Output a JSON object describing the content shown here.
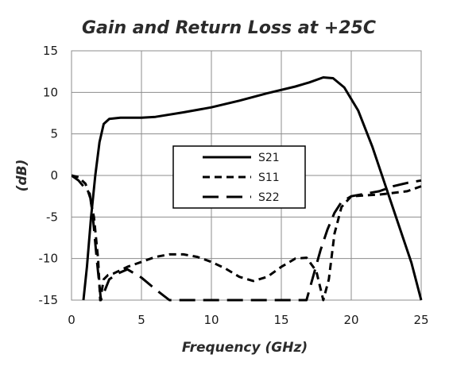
{
  "chart_data": {
    "type": "line",
    "title": "Gain and Return Loss at +25C",
    "xlabel": "Frequency (GHz)",
    "ylabel": "(dB)",
    "xlim": [
      0,
      25
    ],
    "ylim": [
      -15,
      15
    ],
    "xticks": [
      0,
      5,
      10,
      15,
      20,
      25
    ],
    "yticks": [
      15,
      10,
      5,
      0,
      -5,
      -10,
      -15
    ],
    "grid": true,
    "legend_position": "center",
    "series": [
      {
        "name": "S21",
        "line_style": "solid",
        "color": "#000000",
        "points": [
          [
            0.85,
            -15
          ],
          [
            1.1,
            -11
          ],
          [
            1.4,
            -5
          ],
          [
            1.7,
            0
          ],
          [
            2.0,
            4
          ],
          [
            2.3,
            6.2
          ],
          [
            2.7,
            6.8
          ],
          [
            3.5,
            6.95
          ],
          [
            5,
            6.95
          ],
          [
            6,
            7.05
          ],
          [
            8,
            7.6
          ],
          [
            10,
            8.2
          ],
          [
            12,
            9.0
          ],
          [
            14,
            9.9
          ],
          [
            16,
            10.7
          ],
          [
            17,
            11.2
          ],
          [
            18,
            11.8
          ],
          [
            18.7,
            11.7
          ],
          [
            19.5,
            10.6
          ],
          [
            20.5,
            7.8
          ],
          [
            21.5,
            3.5
          ],
          [
            22.5,
            -1.5
          ],
          [
            23.5,
            -6.5
          ],
          [
            24.3,
            -10.5
          ],
          [
            25,
            -15
          ]
        ]
      },
      {
        "name": "S11",
        "line_style": "short-dash",
        "color": "#000000",
        "points": [
          [
            0,
            0
          ],
          [
            0.5,
            -0.2
          ],
          [
            1.0,
            -1.0
          ],
          [
            1.3,
            -2.5
          ],
          [
            1.6,
            -5
          ],
          [
            1.9,
            -10
          ],
          [
            2.05,
            -15
          ],
          [
            2.3,
            -12.5
          ],
          [
            2.6,
            -12
          ],
          [
            3,
            -11.8
          ],
          [
            4,
            -11
          ],
          [
            5,
            -10.4
          ],
          [
            6,
            -9.8
          ],
          [
            7,
            -9.5
          ],
          [
            8,
            -9.5
          ],
          [
            9,
            -9.8
          ],
          [
            10,
            -10.4
          ],
          [
            11,
            -11.2
          ],
          [
            12,
            -12.2
          ],
          [
            13,
            -12.7
          ],
          [
            14,
            -12.2
          ],
          [
            15,
            -11
          ],
          [
            16,
            -10
          ],
          [
            16.8,
            -9.9
          ],
          [
            17.5,
            -11.5
          ],
          [
            18,
            -15
          ],
          [
            18.4,
            -12.5
          ],
          [
            18.8,
            -7
          ],
          [
            19.3,
            -3.8
          ],
          [
            20,
            -2.5
          ],
          [
            21,
            -2.4
          ],
          [
            22,
            -2.3
          ],
          [
            23,
            -2.1
          ],
          [
            24,
            -1.9
          ],
          [
            25,
            -1.3
          ]
        ]
      },
      {
        "name": "S22",
        "line_style": "long-dash",
        "color": "#000000",
        "points": [
          [
            0,
            0
          ],
          [
            0.5,
            -0.6
          ],
          [
            1.0,
            -1.6
          ],
          [
            1.3,
            -2.2
          ],
          [
            1.5,
            -4.5
          ],
          [
            1.8,
            -10
          ],
          [
            2.1,
            -15
          ],
          [
            2.7,
            -12.5
          ],
          [
            3.3,
            -11.8
          ],
          [
            4,
            -11.3
          ],
          [
            5,
            -12.3
          ],
          [
            6,
            -13.7
          ],
          [
            7,
            -15
          ],
          [
            16.8,
            -15
          ],
          [
            17.3,
            -12
          ],
          [
            17.8,
            -9
          ],
          [
            18.3,
            -6.5
          ],
          [
            18.8,
            -4.5
          ],
          [
            19.3,
            -3.2
          ],
          [
            20,
            -2.5
          ],
          [
            21,
            -2.2
          ],
          [
            22,
            -1.9
          ],
          [
            23,
            -1.3
          ],
          [
            24,
            -0.9
          ],
          [
            25,
            -0.6
          ]
        ]
      }
    ]
  }
}
